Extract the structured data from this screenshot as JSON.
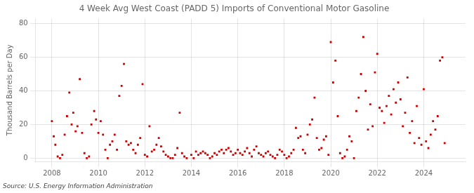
{
  "chart_data": {
    "type": "scatter",
    "title": "4 Week Avg West Coast (PADD 5) Imports of Conventional Motor Gasoline",
    "ylabel": "Thousand Barrels per Day",
    "annotation": "Source: U.S. Energy Information Administration",
    "color": "#cc0000",
    "marker": "square",
    "grid": true,
    "xlim": [
      2007.3,
      2025.8
    ],
    "ylim": [
      -2,
      83
    ],
    "xticks": [
      2008,
      2010,
      2012,
      2014,
      2016,
      2018,
      2020,
      2022,
      2024
    ],
    "yticks": [
      0,
      20,
      40,
      60,
      80
    ],
    "x": [
      2008.0,
      2008.08,
      2008.15,
      2008.25,
      2008.35,
      2008.45,
      2008.55,
      2008.65,
      2008.75,
      2008.85,
      2008.92,
      2009.02,
      2009.1,
      2009.2,
      2009.3,
      2009.4,
      2009.5,
      2009.6,
      2009.7,
      2009.82,
      2009.9,
      2010.0,
      2010.1,
      2010.2,
      2010.3,
      2010.4,
      2010.5,
      2010.6,
      2010.7,
      2010.8,
      2010.9,
      2011.0,
      2011.1,
      2011.2,
      2011.3,
      2011.4,
      2011.5,
      2011.6,
      2011.7,
      2011.8,
      2011.9,
      2012.0,
      2012.1,
      2012.2,
      2012.3,
      2012.4,
      2012.5,
      2012.6,
      2012.7,
      2012.8,
      2012.9,
      2013.0,
      2013.1,
      2013.2,
      2013.3,
      2013.4,
      2013.5,
      2013.6,
      2013.7,
      2013.8,
      2014.0,
      2014.1,
      2014.2,
      2014.3,
      2014.4,
      2014.5,
      2014.6,
      2014.7,
      2014.8,
      2014.9,
      2015.0,
      2015.1,
      2015.2,
      2015.3,
      2015.4,
      2015.5,
      2015.6,
      2015.7,
      2015.8,
      2015.9,
      2016.0,
      2016.1,
      2016.2,
      2016.3,
      2016.4,
      2016.5,
      2016.6,
      2016.7,
      2016.8,
      2016.9,
      2017.0,
      2017.1,
      2017.2,
      2017.3,
      2017.4,
      2017.5,
      2017.6,
      2017.7,
      2017.8,
      2017.9,
      2018.0,
      2018.1,
      2018.2,
      2018.3,
      2018.4,
      2018.5,
      2018.6,
      2018.7,
      2018.8,
      2018.9,
      2019.0,
      2019.1,
      2019.2,
      2019.3,
      2019.4,
      2019.5,
      2019.6,
      2019.7,
      2019.8,
      2019.9,
      2020.0,
      2020.1,
      2020.2,
      2020.3,
      2020.4,
      2020.5,
      2020.6,
      2020.7,
      2020.8,
      2020.9,
      2021.0,
      2021.1,
      2021.2,
      2021.3,
      2021.4,
      2021.5,
      2021.6,
      2021.7,
      2021.8,
      2021.9,
      2022.0,
      2022.1,
      2022.2,
      2022.3,
      2022.4,
      2022.5,
      2022.6,
      2022.7,
      2022.8,
      2022.9,
      2023.0,
      2023.1,
      2023.2,
      2023.3,
      2023.4,
      2023.5,
      2023.6,
      2023.7,
      2023.8,
      2023.9,
      2024.0,
      2024.1,
      2024.2,
      2024.3,
      2024.4,
      2024.5,
      2024.6,
      2024.7,
      2024.8,
      2024.9
    ],
    "values": [
      22,
      13,
      8,
      1,
      0,
      2,
      14,
      25,
      39,
      20,
      27,
      16,
      19,
      47,
      15,
      3,
      0,
      1,
      20,
      28,
      23,
      15,
      22,
      14,
      5,
      0,
      8,
      10,
      14,
      5,
      37,
      43,
      56,
      10,
      8,
      9,
      5,
      3,
      8,
      12,
      44,
      2,
      1,
      19,
      4,
      5,
      8,
      12,
      7,
      4,
      2,
      1,
      0,
      0,
      2,
      6,
      27,
      3,
      1,
      0,
      2,
      0,
      4,
      2,
      3,
      4,
      3,
      2,
      0,
      1,
      3,
      2,
      4,
      5,
      3,
      5,
      6,
      4,
      2,
      3,
      5,
      3,
      2,
      4,
      6,
      3,
      1,
      5,
      7,
      3,
      2,
      1,
      3,
      4,
      2,
      1,
      0,
      2,
      5,
      4,
      2,
      0,
      1,
      3,
      5,
      18,
      12,
      13,
      5,
      3,
      14,
      20,
      23,
      36,
      12,
      5,
      6,
      11,
      13,
      2,
      69,
      45,
      58,
      25,
      3,
      0,
      1,
      5,
      13,
      10,
      0,
      28,
      36,
      50,
      72,
      40,
      17,
      32,
      19,
      51,
      62,
      30,
      28,
      21,
      31,
      37,
      26,
      41,
      33,
      45,
      35,
      19,
      27,
      48,
      15,
      22,
      9,
      31,
      12,
      8,
      41,
      10,
      6,
      14,
      22,
      17,
      25,
      58,
      60,
      9
    ]
  }
}
